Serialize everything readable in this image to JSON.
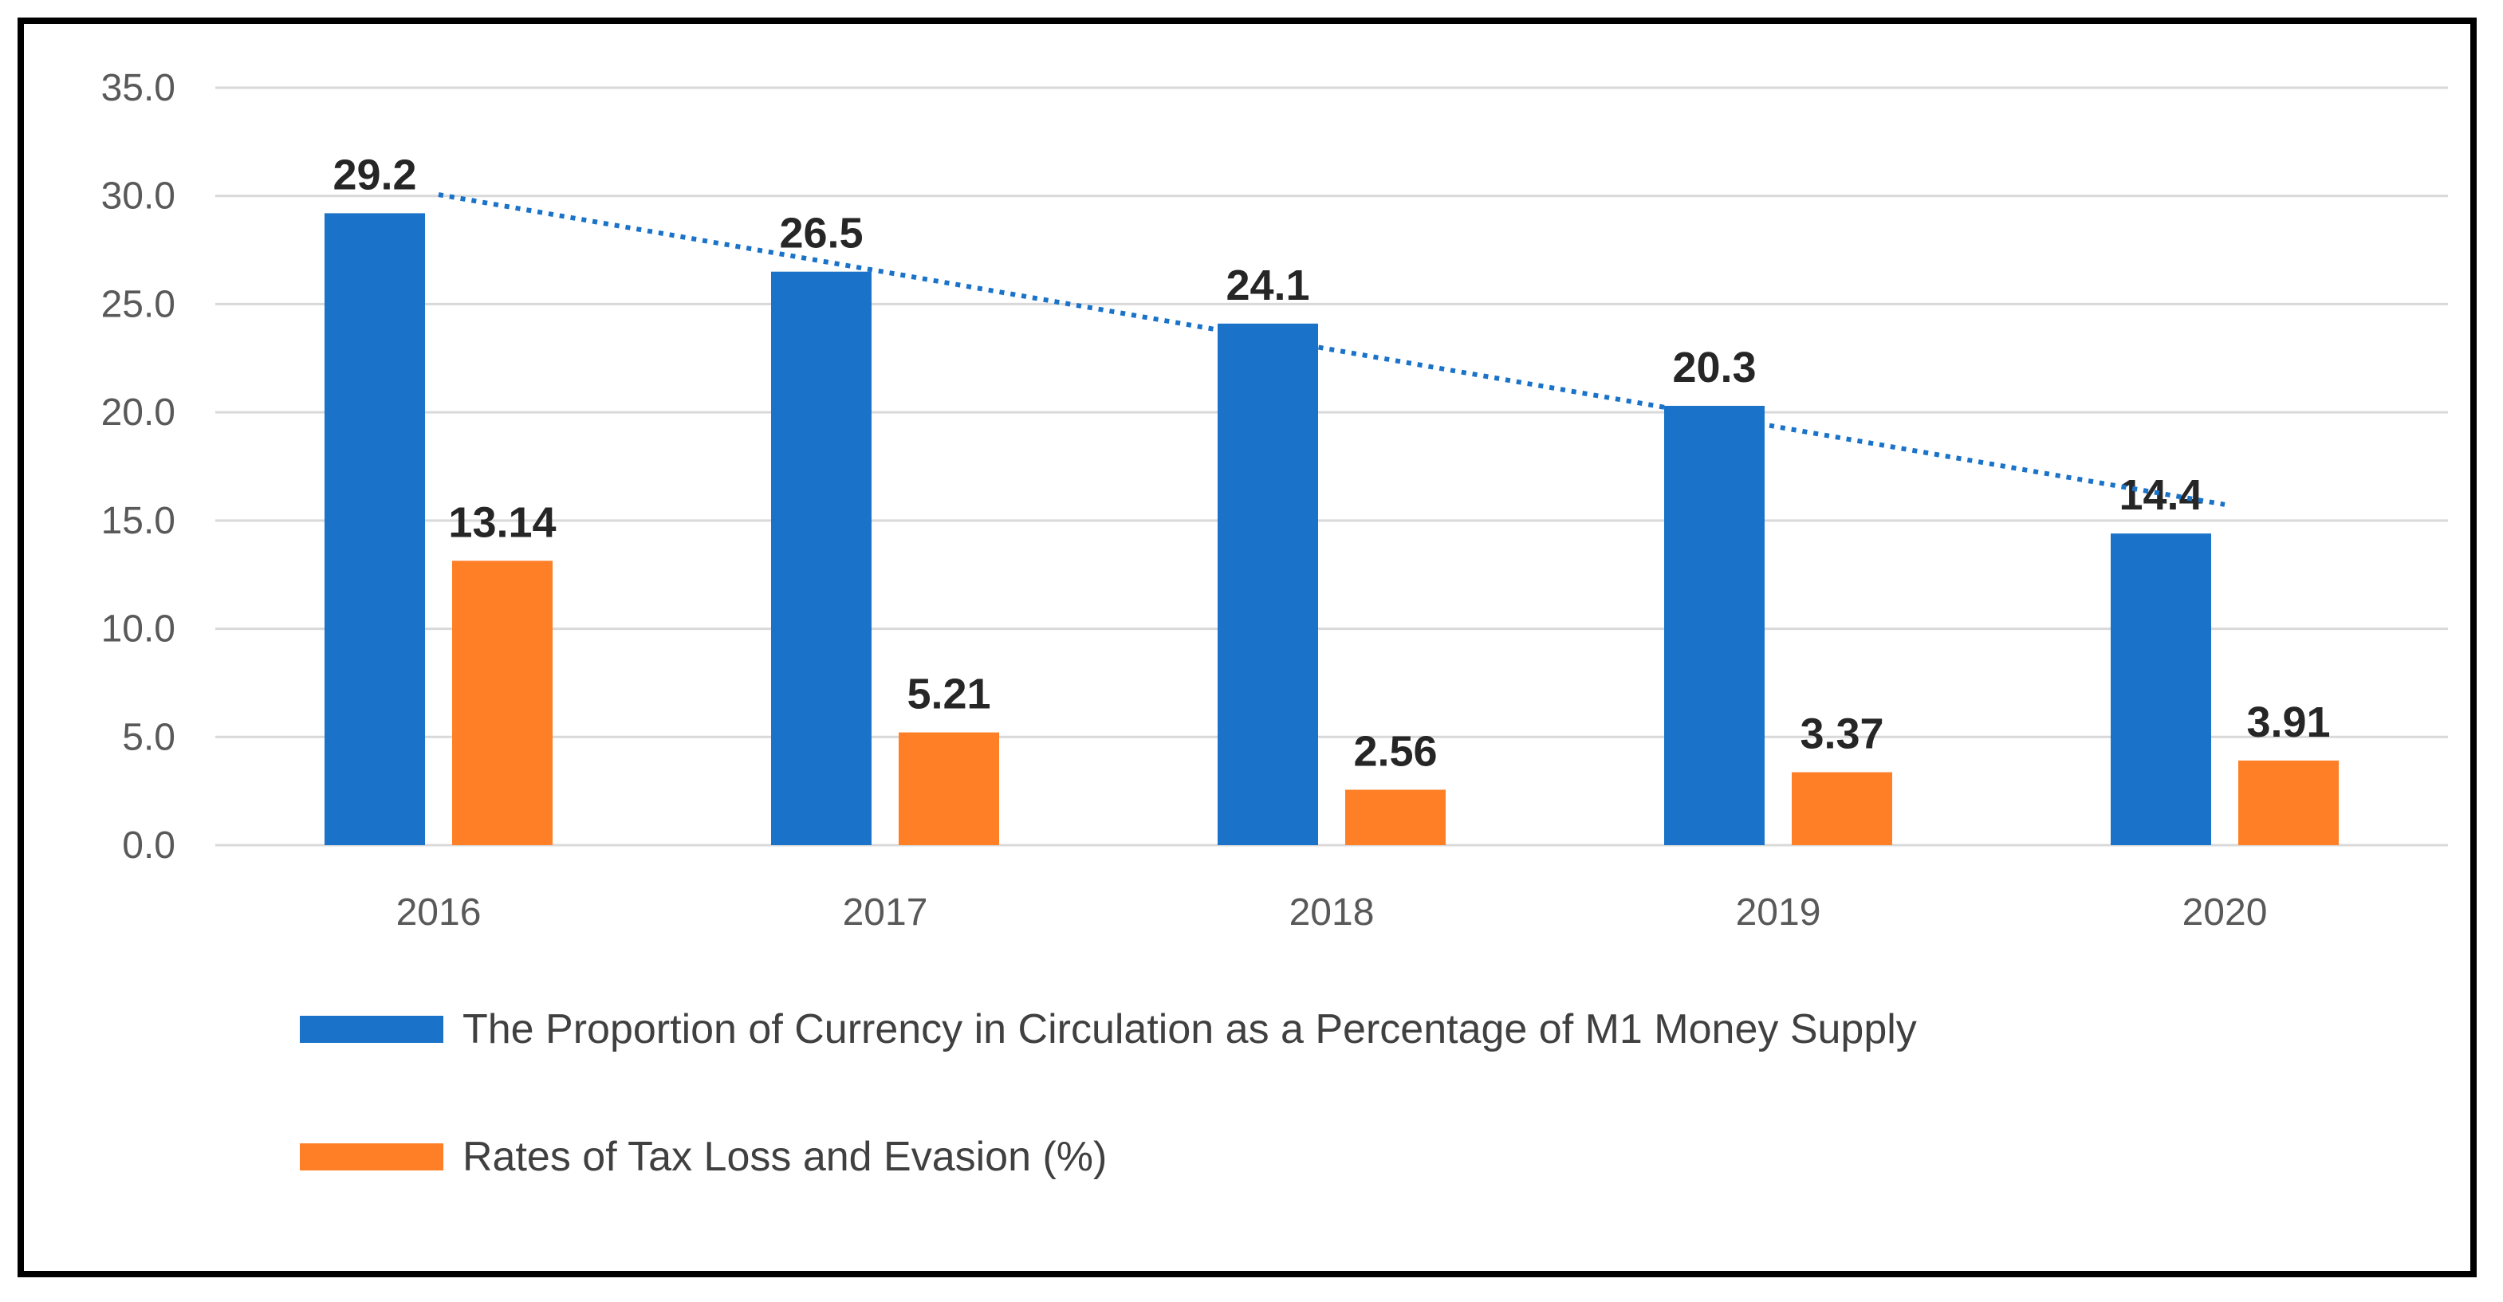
{
  "chart_data": {
    "type": "bar",
    "categories": [
      "2016",
      "2017",
      "2018",
      "2019",
      "2020"
    ],
    "series": [
      {
        "name": "The Proportion of Currency in Circulation as a Percentage of M1 Money Supply",
        "values": [
          29.2,
          26.5,
          24.1,
          20.3,
          14.4
        ],
        "labels": [
          "29.2",
          "26.5",
          "24.1",
          "20.3",
          "14.4"
        ],
        "color": "#1a73c8"
      },
      {
        "name": "Rates of Tax Loss and Evasion (%)",
        "values": [
          13.14,
          5.21,
          2.56,
          3.37,
          3.91
        ],
        "labels": [
          "13.14",
          "5.21",
          "2.56",
          "3.37",
          "3.91"
        ],
        "color": "#ff7f27"
      }
    ],
    "trendline": {
      "series": 0,
      "type": "linear",
      "style": "dotted",
      "color": "#1a73c8"
    },
    "yticks": [
      "0.0",
      "5.0",
      "10.0",
      "15.0",
      "20.0",
      "25.0",
      "30.0",
      "35.0"
    ],
    "ylim": [
      0,
      35
    ],
    "grid": true,
    "legend_position": "bottom-left",
    "title": "",
    "xlabel": "",
    "ylabel": ""
  }
}
